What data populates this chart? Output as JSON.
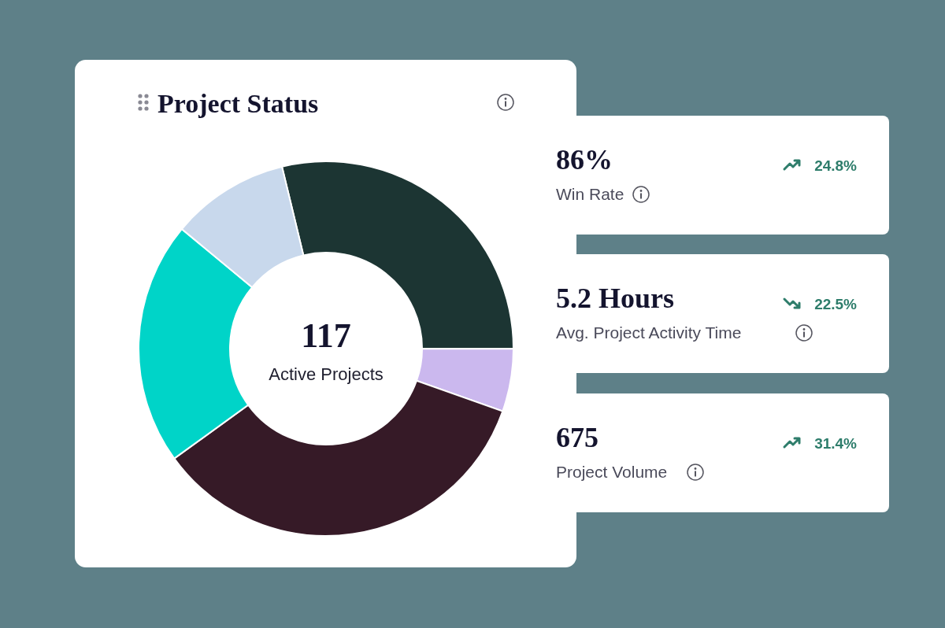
{
  "chart_data": [
    {
      "type": "donut",
      "title": "Project Status",
      "categories": [
        null,
        null,
        null,
        null,
        null
      ],
      "values": [
        28.8,
        5.4,
        34.6,
        21.0,
        10.2
      ],
      "colors": [
        "#1c3533",
        "#cbb8ee",
        "#361a27",
        "#00d4c8",
        "#c8d8ec"
      ],
      "annotations": [
        "117",
        "Active Projects"
      ]
    },
    {
      "type": "other",
      "categories": [
        "Win Rate",
        "Avg. Project Activity Time",
        "Project Volume"
      ],
      "value_labels": [
        "86%",
        "5.2 Hours",
        "675"
      ],
      "annotations": [
        "24.8%",
        "22.5%",
        "31.4%"
      ]
    }
  ]
}
